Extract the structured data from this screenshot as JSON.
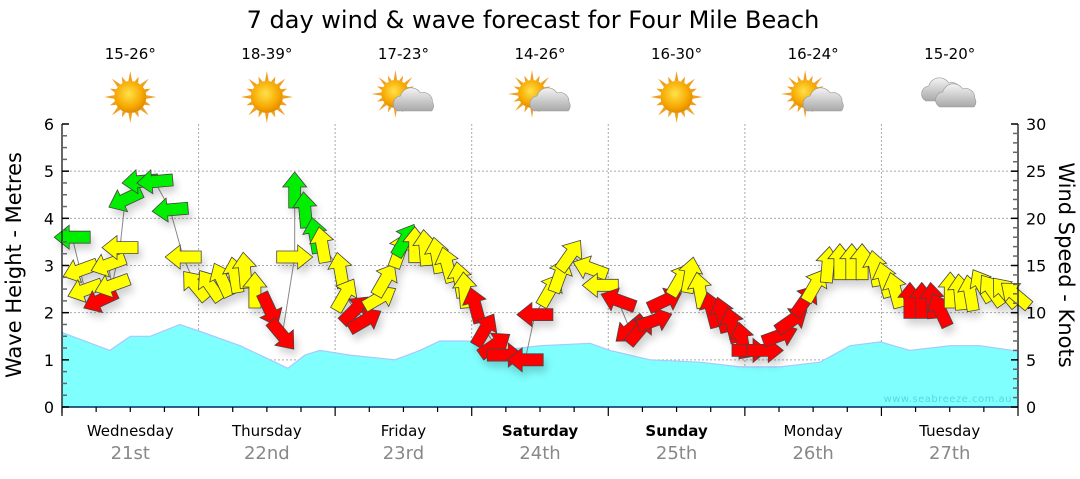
{
  "chart_data": {
    "type": "area",
    "title": "7 day wind & wave forecast for Four Mile Beach",
    "ylabel_left": "Wave Height - Metres",
    "ylabel_right": "Wind Speed - Knots",
    "ylim_left": [
      0,
      6
    ],
    "ylim_right": [
      0,
      30
    ],
    "yticks_left": [
      "0",
      "1",
      "2",
      "3",
      "4",
      "5",
      "6"
    ],
    "yticks_right": [
      "0",
      "5",
      "10",
      "15",
      "20",
      "25",
      "30"
    ],
    "xlim_hours": [
      0,
      168
    ],
    "grid": true,
    "watermark": "www.seabreeze.com.au",
    "days": [
      {
        "day": "Wednesday",
        "date": "21st",
        "bold": false,
        "temp": "15-26°",
        "weather": "sunny"
      },
      {
        "day": "Thursday",
        "date": "22nd",
        "bold": false,
        "temp": "18-39°",
        "weather": "sunny"
      },
      {
        "day": "Friday",
        "date": "23rd",
        "bold": false,
        "temp": "17-23°",
        "weather": "partly-cloudy"
      },
      {
        "day": "Saturday",
        "date": "24th",
        "bold": true,
        "temp": "14-26°",
        "weather": "partly-cloudy"
      },
      {
        "day": "Sunday",
        "date": "25th",
        "bold": true,
        "temp": "16-30°",
        "weather": "sunny"
      },
      {
        "day": "Monday",
        "date": "26th",
        "bold": false,
        "temp": "16-24°",
        "weather": "partly-cloudy"
      },
      {
        "day": "Tuesday",
        "date": "27th",
        "bold": false,
        "temp": "15-20°",
        "weather": "cloudy"
      }
    ],
    "wave_series": {
      "name": "Wave height (m)",
      "color": "#80ffff",
      "points": [
        [
          0,
          1.58
        ],
        [
          8.4,
          1.2
        ],
        [
          12,
          1.5
        ],
        [
          15.5,
          1.5
        ],
        [
          20.7,
          1.75
        ],
        [
          24.3,
          1.6
        ],
        [
          31.3,
          1.3
        ],
        [
          34.8,
          1.1
        ],
        [
          39.7,
          0.82
        ],
        [
          42.7,
          1.1
        ],
        [
          45.3,
          1.2
        ],
        [
          50.6,
          1.1
        ],
        [
          58.5,
          1.0
        ],
        [
          62.9,
          1.2
        ],
        [
          66.4,
          1.4
        ],
        [
          71.7,
          1.4
        ],
        [
          77,
          1.2
        ],
        [
          84,
          1.3
        ],
        [
          92.8,
          1.35
        ],
        [
          96.3,
          1.2
        ],
        [
          103.3,
          1.0
        ],
        [
          112.1,
          0.95
        ],
        [
          119.2,
          0.85
        ],
        [
          126.2,
          0.85
        ],
        [
          133.2,
          0.95
        ],
        [
          138.5,
          1.3
        ],
        [
          143.8,
          1.38
        ],
        [
          149,
          1.2
        ],
        [
          156.1,
          1.3
        ],
        [
          161.3,
          1.3
        ],
        [
          168,
          1.18
        ]
      ]
    },
    "wind_colors": {
      "green": "#00ee00",
      "yellow": "#ffff00",
      "red": "#ff0000"
    },
    "wind_series": {
      "name": "Wind speed (knots) and direction",
      "fields": [
        "hour",
        "knots",
        "arrow_angle_deg",
        "color"
      ],
      "points": [
        [
          1.8,
          18,
          180,
          "green"
        ],
        [
          3.2,
          14.5,
          160,
          "yellow"
        ],
        [
          4,
          12.4,
          160,
          "yellow"
        ],
        [
          6.7,
          11.3,
          155,
          "red"
        ],
        [
          8.1,
          15.1,
          160,
          "yellow"
        ],
        [
          8.8,
          12.9,
          160,
          "yellow"
        ],
        [
          10.2,
          16.9,
          180,
          "yellow"
        ],
        [
          11.1,
          22,
          155,
          "green"
        ],
        [
          13.7,
          23.9,
          175,
          "green"
        ],
        [
          16.3,
          23.9,
          175,
          "green"
        ],
        [
          19,
          20.9,
          175,
          "green"
        ],
        [
          21.3,
          15.9,
          180,
          "yellow"
        ],
        [
          23.4,
          12.9,
          -130,
          "yellow"
        ],
        [
          26,
          12.9,
          -125,
          "yellow"
        ],
        [
          28.1,
          13.5,
          -115,
          "yellow"
        ],
        [
          30.4,
          14,
          -100,
          "yellow"
        ],
        [
          32.1,
          14.5,
          -95,
          "yellow"
        ],
        [
          33.9,
          12.4,
          -90,
          "yellow"
        ],
        [
          36.5,
          10.3,
          65,
          "red"
        ],
        [
          38.7,
          7.6,
          50,
          "red"
        ],
        [
          40.9,
          15.9,
          0,
          "yellow"
        ],
        [
          40.9,
          23,
          -90,
          "green"
        ],
        [
          42.7,
          20.9,
          -95,
          "green"
        ],
        [
          44.5,
          18.2,
          -100,
          "green"
        ],
        [
          45.7,
          17.2,
          -100,
          "yellow"
        ],
        [
          48.9,
          14.5,
          -100,
          "yellow"
        ],
        [
          49.7,
          11.9,
          -60,
          "yellow"
        ],
        [
          51.5,
          10.3,
          -45,
          "red"
        ],
        [
          53.3,
          9.2,
          -30,
          "red"
        ],
        [
          55.9,
          11.6,
          -30,
          "yellow"
        ],
        [
          56.8,
          13.5,
          -60,
          "yellow"
        ],
        [
          59.4,
          16.6,
          -70,
          "yellow"
        ],
        [
          60.3,
          17.7,
          -60,
          "green"
        ],
        [
          62,
          17.2,
          -90,
          "yellow"
        ],
        [
          63.8,
          16.9,
          -95,
          "yellow"
        ],
        [
          65.9,
          16.1,
          -100,
          "yellow"
        ],
        [
          67.7,
          15.1,
          -105,
          "yellow"
        ],
        [
          69.9,
          13.5,
          -100,
          "yellow"
        ],
        [
          70.8,
          12.4,
          -95,
          "yellow"
        ],
        [
          72.6,
          10.8,
          -105,
          "red"
        ],
        [
          74.3,
          8.2,
          -60,
          "red"
        ],
        [
          76.1,
          6.6,
          -35,
          "red"
        ],
        [
          77.9,
          5.5,
          0,
          "red"
        ],
        [
          81.4,
          5,
          180,
          "red"
        ],
        [
          83.1,
          9.8,
          180,
          "red"
        ],
        [
          85.8,
          12.4,
          -60,
          "yellow"
        ],
        [
          87.5,
          14,
          -70,
          "yellow"
        ],
        [
          89.3,
          16.1,
          -55,
          "yellow"
        ],
        [
          92.8,
          14.7,
          -160,
          "yellow"
        ],
        [
          94.6,
          12.9,
          180,
          "yellow"
        ],
        [
          97.7,
          11.3,
          -160,
          "red"
        ],
        [
          99.8,
          8.2,
          140,
          "red"
        ],
        [
          101.6,
          8.2,
          -50,
          "red"
        ],
        [
          104.2,
          9.2,
          -20,
          "red"
        ],
        [
          106,
          11.3,
          -25,
          "red"
        ],
        [
          108.6,
          13.5,
          -60,
          "yellow"
        ],
        [
          110.4,
          14,
          -80,
          "yellow"
        ],
        [
          112.1,
          12.4,
          -100,
          "yellow"
        ],
        [
          114.2,
          10.3,
          -105,
          "red"
        ],
        [
          116,
          9.8,
          -105,
          "red"
        ],
        [
          117.8,
          8.7,
          -105,
          "red"
        ],
        [
          119.5,
          7.1,
          -100,
          "red"
        ],
        [
          120.9,
          6,
          0,
          "red"
        ],
        [
          123.6,
          6,
          0,
          "red"
        ],
        [
          126.2,
          7.6,
          -20,
          "red"
        ],
        [
          128.3,
          9.2,
          -35,
          "red"
        ],
        [
          130.6,
          11.3,
          -55,
          "red"
        ],
        [
          132.3,
          12.9,
          -60,
          "yellow"
        ],
        [
          134.6,
          15.1,
          -85,
          "yellow"
        ],
        [
          136.7,
          15.4,
          -90,
          "yellow"
        ],
        [
          138.8,
          15.4,
          -90,
          "yellow"
        ],
        [
          140.6,
          15.4,
          -90,
          "yellow"
        ],
        [
          142.9,
          14.7,
          -100,
          "yellow"
        ],
        [
          144.6,
          13.5,
          -105,
          "yellow"
        ],
        [
          146.4,
          12.4,
          -105,
          "yellow"
        ],
        [
          149,
          11.3,
          -90,
          "red"
        ],
        [
          151.1,
          11.3,
          -90,
          "red"
        ],
        [
          152.9,
          11.3,
          -95,
          "red"
        ],
        [
          154.3,
          10.3,
          -115,
          "red"
        ],
        [
          156.1,
          12.4,
          -90,
          "yellow"
        ],
        [
          157.8,
          12.2,
          -95,
          "yellow"
        ],
        [
          159.6,
          12.1,
          -100,
          "yellow"
        ],
        [
          161.7,
          12.9,
          -120,
          "yellow"
        ],
        [
          163.4,
          12.4,
          -125,
          "yellow"
        ],
        [
          165.7,
          12.2,
          -130,
          "yellow"
        ],
        [
          167.5,
          11.9,
          -140,
          "yellow"
        ]
      ]
    }
  }
}
